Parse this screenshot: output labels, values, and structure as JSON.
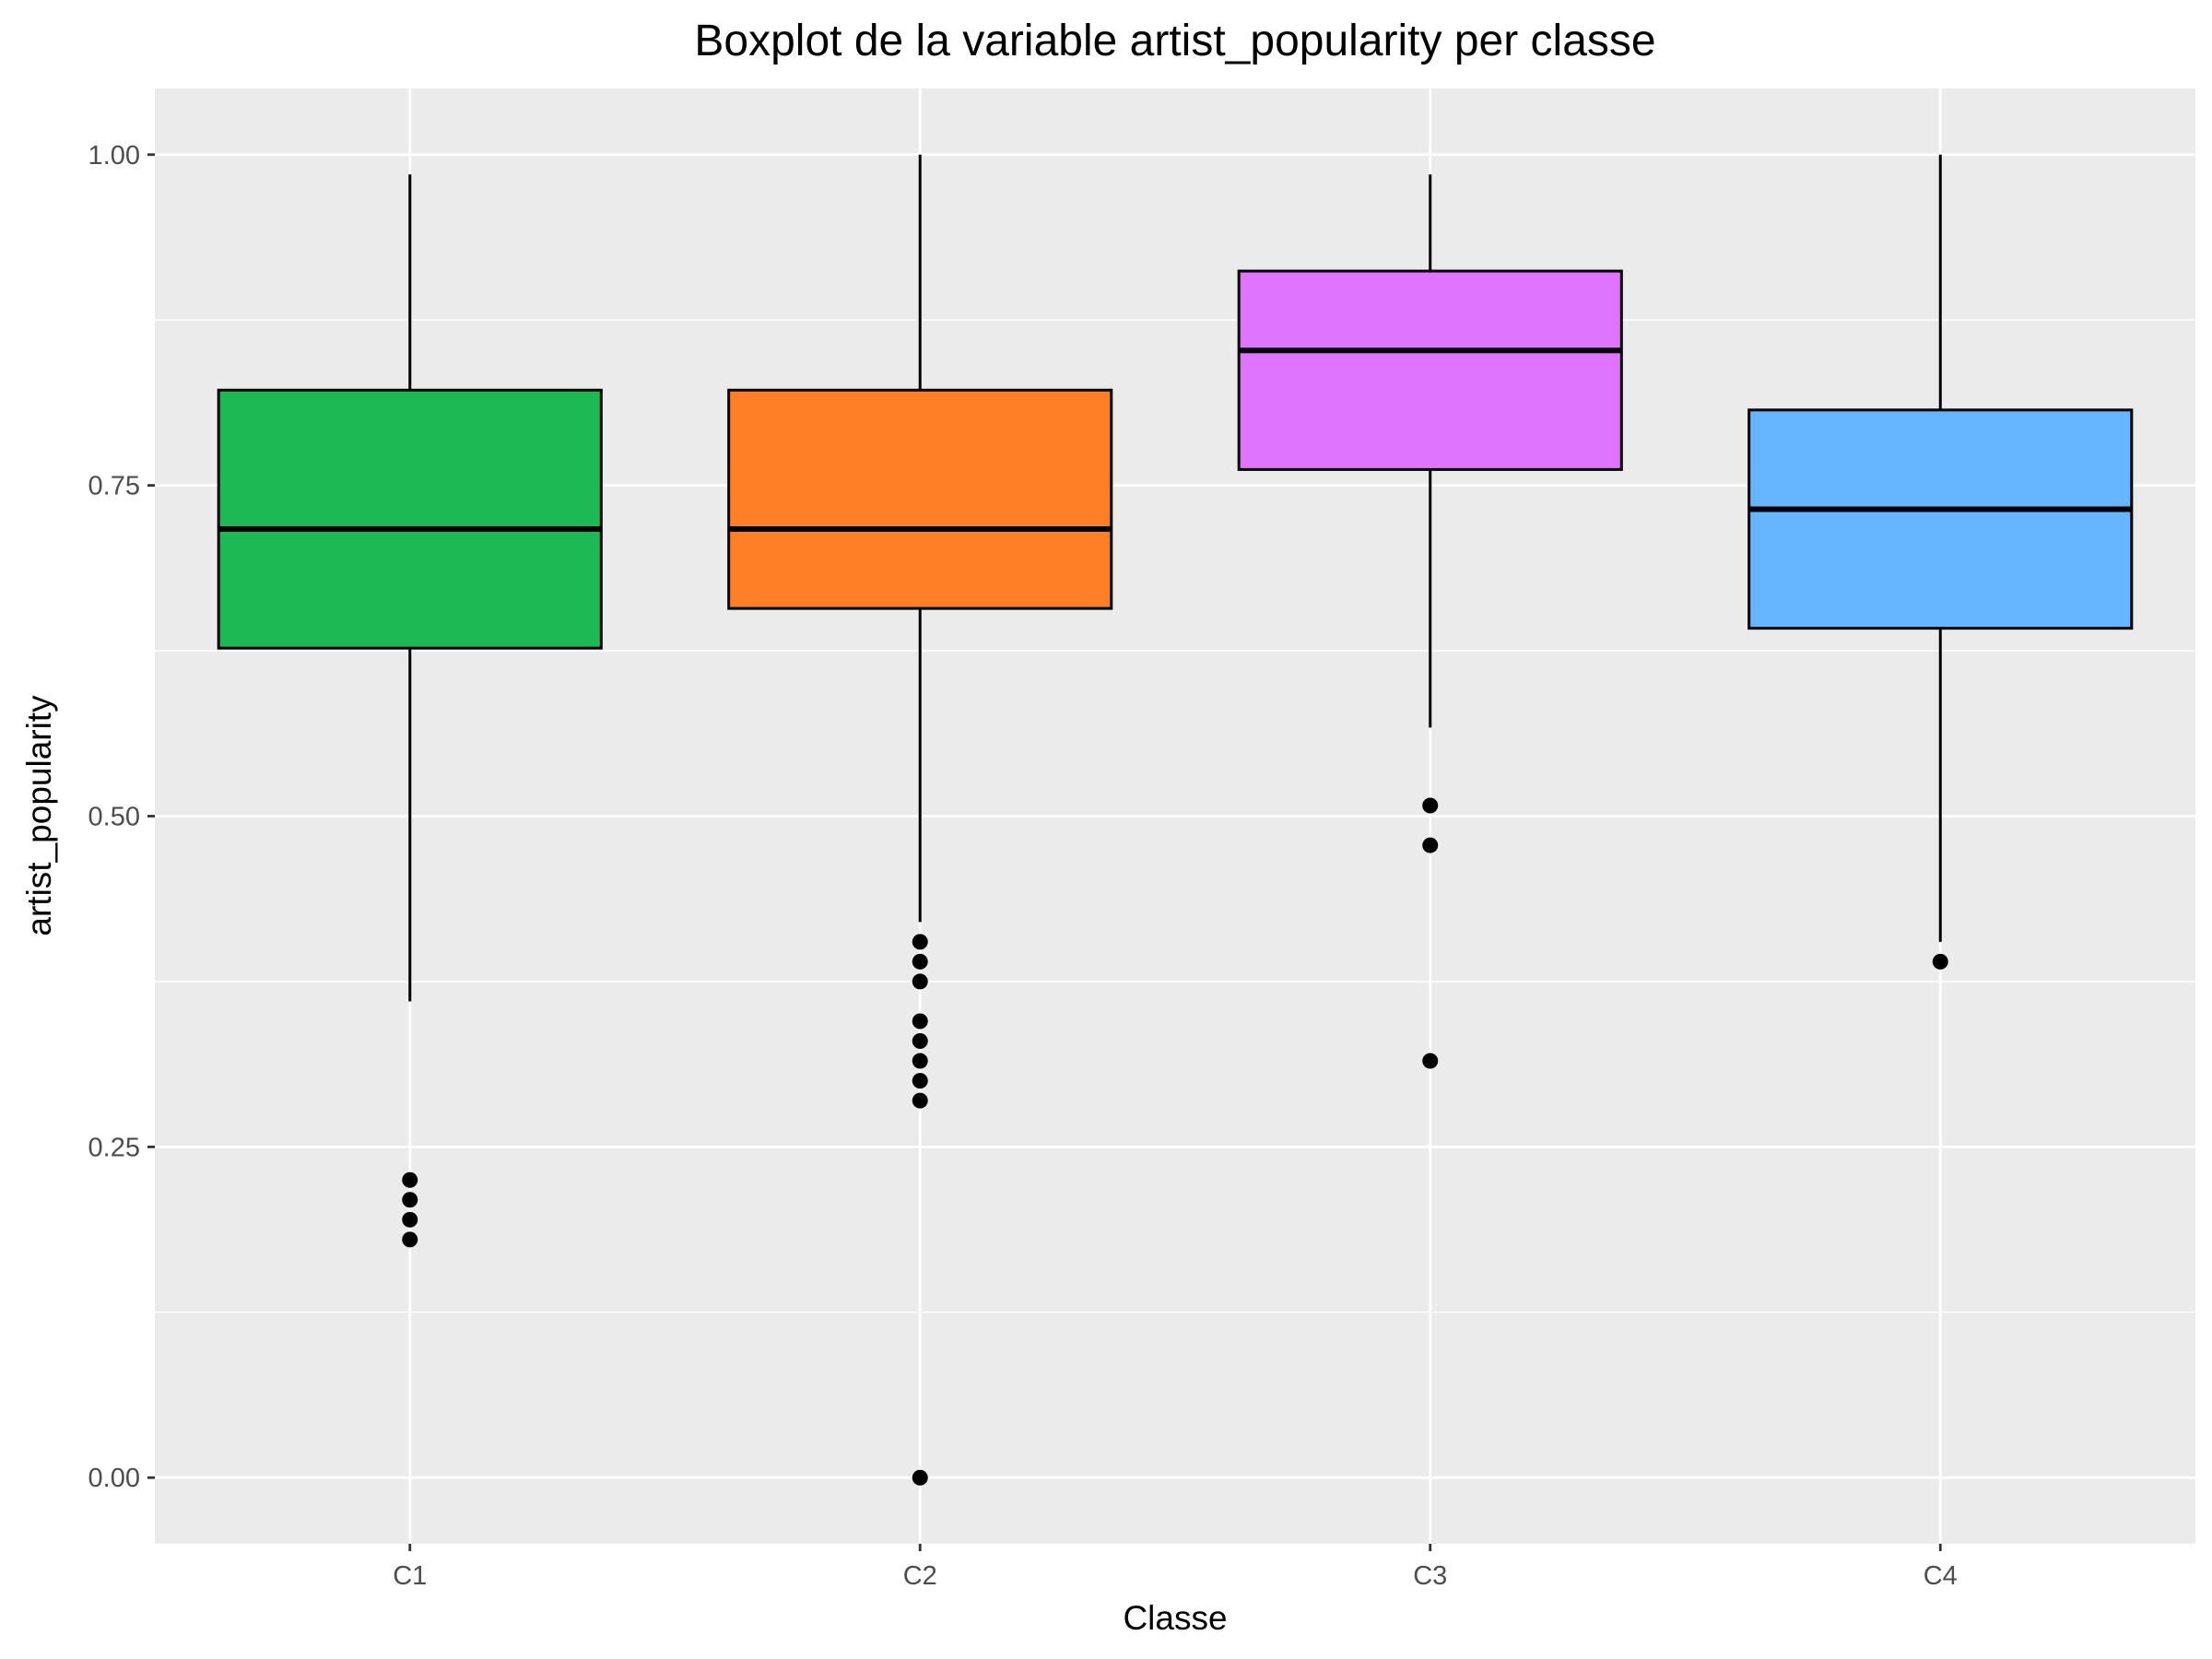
{
  "chart_data": {
    "type": "boxplot",
    "title": "Boxplot de la variable artist_popularity per classe",
    "xlabel": "Classe",
    "ylabel": "artist_popularity",
    "ylim": [
      -0.05,
      1.05
    ],
    "y_ticks": [
      0,
      0.25,
      0.5,
      0.75,
      1.0
    ],
    "y_tick_labels": [
      "0.00",
      "0.25",
      "0.50",
      "0.75",
      "1.00"
    ],
    "grid": true,
    "legend": "none",
    "categories": [
      "C1",
      "C2",
      "C3",
      "C4"
    ],
    "boxes": [
      {
        "category": "C1",
        "color": "#1DB954",
        "whisker_low": 0.36,
        "q1": 0.627,
        "median": 0.717,
        "q3": 0.822,
        "whisker_high": 0.985,
        "outliers": [
          0.225,
          0.21,
          0.195,
          0.18
        ]
      },
      {
        "category": "C2",
        "color": "#FF7F27",
        "whisker_low": 0.42,
        "q1": 0.657,
        "median": 0.717,
        "q3": 0.822,
        "whisker_high": 1.0,
        "outliers": [
          0.405,
          0.39,
          0.375,
          0.345,
          0.33,
          0.315,
          0.3,
          0.285,
          0.0
        ]
      },
      {
        "category": "C3",
        "color": "#DF75FF",
        "whisker_low": 0.567,
        "q1": 0.762,
        "median": 0.852,
        "q3": 0.912,
        "whisker_high": 0.985,
        "outliers": [
          0.508,
          0.478,
          0.315
        ]
      },
      {
        "category": "C4",
        "color": "#66B5FF",
        "whisker_low": 0.405,
        "q1": 0.642,
        "median": 0.732,
        "q3": 0.807,
        "whisker_high": 1.0,
        "outliers": [
          0.39
        ]
      }
    ]
  }
}
